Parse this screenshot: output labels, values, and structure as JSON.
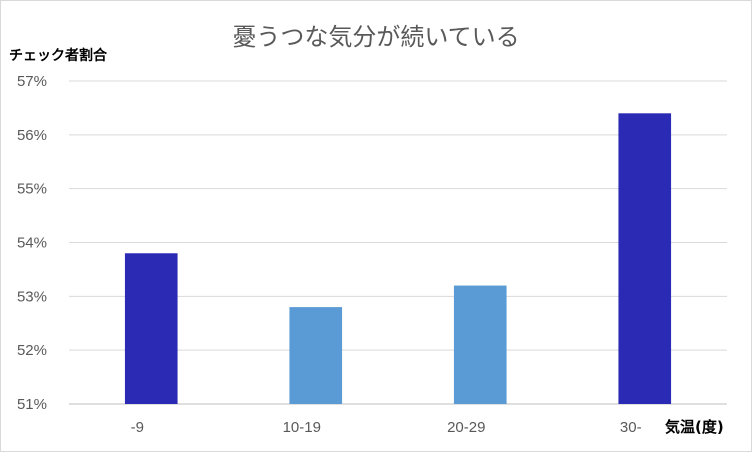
{
  "chart_data": {
    "type": "bar",
    "title": "憂うつな気分が続いている",
    "ylabel": "チェック者割合",
    "xlabel": "気温(度)",
    "categories": [
      "-9",
      "10-19",
      "20-29",
      "30-"
    ],
    "values": [
      53.8,
      52.8,
      53.2,
      56.4
    ],
    "bar_colors": [
      "#2a2ab4",
      "#5b9bd5",
      "#5b9bd5",
      "#2a2ab4"
    ],
    "yticks": [
      "51%",
      "52%",
      "53%",
      "54%",
      "55%",
      "56%",
      "57%"
    ],
    "ylim": [
      51,
      57
    ],
    "grid": true,
    "legend": "none"
  }
}
